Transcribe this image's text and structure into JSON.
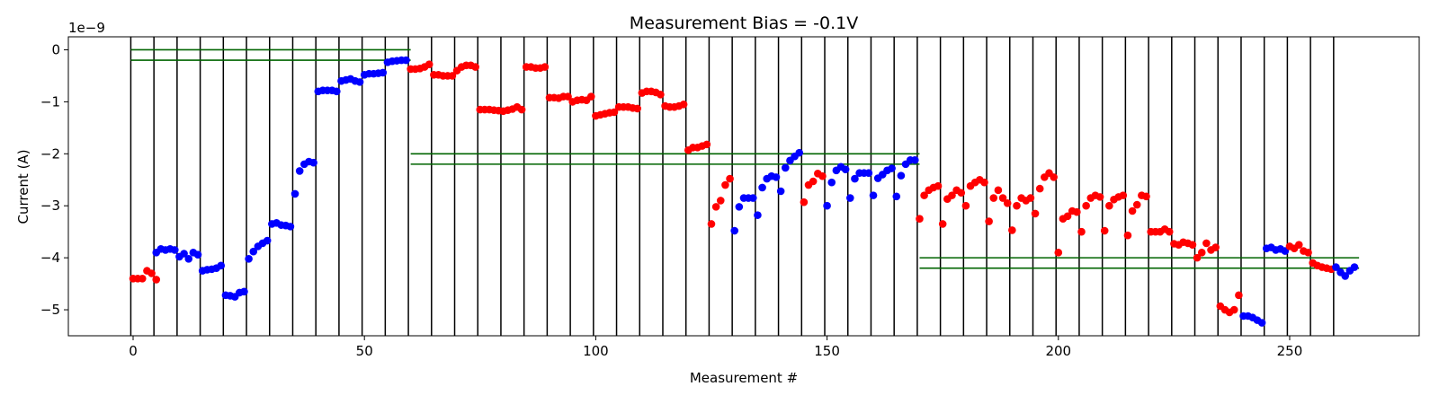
{
  "chart_data": {
    "type": "scatter",
    "title": "Measurement Bias = -0.1V",
    "xlabel": "Measurement #",
    "ylabel": "Current (A)",
    "y_scale_label": "1e−9",
    "xlim": [
      -14,
      278
    ],
    "ylim": [
      -5.5,
      0.25
    ],
    "x_ticks": [
      0,
      50,
      100,
      150,
      200,
      250
    ],
    "y_ticks": [
      0,
      -1,
      -2,
      -3,
      -4,
      -5
    ],
    "x_tick_labels": [
      "0",
      "50",
      "100",
      "150",
      "200",
      "250"
    ],
    "y_tick_labels": [
      "0",
      "−1",
      "−2",
      "−3",
      "−4",
      "−5"
    ],
    "grid": false,
    "vertical_lines": [
      -0.5,
      4.5,
      9.5,
      14.5,
      19.5,
      24.5,
      29.5,
      34.5,
      39.5,
      44.5,
      49.5,
      54.5,
      59.5,
      64.5,
      69.5,
      74.5,
      79.5,
      84.5,
      89.5,
      94.5,
      99.5,
      104.5,
      109.5,
      114.5,
      119.5,
      124.5,
      129.5,
      134.5,
      139.5,
      144.5,
      149.5,
      154.5,
      159.5,
      164.5,
      169.5,
      174.5,
      179.5,
      184.5,
      189.5,
      194.5,
      199.5,
      204.5,
      209.5,
      214.5,
      219.5,
      224.5,
      229.5,
      234.5,
      239.5,
      244.5,
      249.5,
      254.5,
      259.5
    ],
    "reference_lines": [
      {
        "x": [
          -0.5,
          60
        ],
        "y": 0.0
      },
      {
        "x": [
          -0.5,
          60
        ],
        "y": -0.2
      },
      {
        "x": [
          60,
          170
        ],
        "y": -2.0
      },
      {
        "x": [
          60,
          170
        ],
        "y": -2.2
      },
      {
        "x": [
          170,
          265
        ],
        "y": -4.0
      },
      {
        "x": [
          170,
          265
        ],
        "y": -4.2
      }
    ],
    "colors": {
      "red": "#ff0000",
      "blue": "#0000ff",
      "reference": "#006400",
      "separator": "#000000"
    },
    "series": [
      {
        "color": "red",
        "points": [
          [
            0,
            -4.4
          ],
          [
            1,
            -4.4
          ],
          [
            2,
            -4.4
          ],
          [
            3,
            -4.25
          ],
          [
            4,
            -4.3
          ],
          [
            5,
            -4.42
          ]
        ]
      },
      {
        "color": "blue",
        "points": [
          [
            5,
            -3.9
          ],
          [
            6,
            -3.83
          ],
          [
            7,
            -3.85
          ],
          [
            8,
            -3.83
          ],
          [
            9,
            -3.85
          ],
          [
            10,
            -3.98
          ],
          [
            11,
            -3.92
          ],
          [
            12,
            -4.02
          ],
          [
            13,
            -3.9
          ],
          [
            14,
            -3.94
          ],
          [
            15,
            -4.25
          ],
          [
            16,
            -4.23
          ],
          [
            17,
            -4.22
          ],
          [
            18,
            -4.2
          ],
          [
            19,
            -4.15
          ],
          [
            20,
            -4.72
          ],
          [
            21,
            -4.73
          ],
          [
            22,
            -4.75
          ],
          [
            23,
            -4.67
          ],
          [
            24,
            -4.65
          ],
          [
            25,
            -4.02
          ],
          [
            26,
            -3.88
          ],
          [
            27,
            -3.78
          ],
          [
            28,
            -3.72
          ],
          [
            29,
            -3.67
          ],
          [
            30,
            -3.35
          ],
          [
            31,
            -3.33
          ],
          [
            32,
            -3.37
          ],
          [
            33,
            -3.38
          ],
          [
            34,
            -3.4
          ],
          [
            35,
            -2.77
          ],
          [
            36,
            -2.33
          ],
          [
            37,
            -2.2
          ],
          [
            38,
            -2.15
          ],
          [
            39,
            -2.17
          ],
          [
            40,
            -0.8
          ],
          [
            41,
            -0.78
          ],
          [
            42,
            -0.78
          ],
          [
            43,
            -0.78
          ],
          [
            44,
            -0.8
          ],
          [
            45,
            -0.6
          ],
          [
            46,
            -0.58
          ],
          [
            47,
            -0.56
          ],
          [
            48,
            -0.6
          ],
          [
            49,
            -0.62
          ],
          [
            50,
            -0.48
          ],
          [
            51,
            -0.46
          ],
          [
            52,
            -0.46
          ],
          [
            53,
            -0.45
          ],
          [
            54,
            -0.44
          ],
          [
            55,
            -0.24
          ],
          [
            56,
            -0.22
          ],
          [
            57,
            -0.21
          ],
          [
            58,
            -0.2
          ],
          [
            59,
            -0.2
          ]
        ]
      },
      {
        "color": "red",
        "points": [
          [
            60,
            -0.37
          ],
          [
            61,
            -0.37
          ],
          [
            62,
            -0.36
          ],
          [
            63,
            -0.33
          ],
          [
            64,
            -0.28
          ],
          [
            65,
            -0.48
          ],
          [
            66,
            -0.48
          ],
          [
            67,
            -0.5
          ],
          [
            68,
            -0.5
          ],
          [
            69,
            -0.5
          ],
          [
            70,
            -0.4
          ],
          [
            71,
            -0.33
          ],
          [
            72,
            -0.3
          ],
          [
            73,
            -0.3
          ],
          [
            74,
            -0.33
          ],
          [
            75,
            -1.15
          ],
          [
            76,
            -1.15
          ],
          [
            77,
            -1.15
          ],
          [
            78,
            -1.16
          ],
          [
            79,
            -1.17
          ],
          [
            80,
            -1.18
          ],
          [
            81,
            -1.16
          ],
          [
            82,
            -1.14
          ],
          [
            83,
            -1.1
          ],
          [
            84,
            -1.15
          ],
          [
            85,
            -0.33
          ],
          [
            86,
            -0.33
          ],
          [
            87,
            -0.35
          ],
          [
            88,
            -0.35
          ],
          [
            89,
            -0.33
          ],
          [
            90,
            -0.92
          ],
          [
            91,
            -0.92
          ],
          [
            92,
            -0.93
          ],
          [
            93,
            -0.9
          ],
          [
            94,
            -0.9
          ],
          [
            95,
            -1.0
          ],
          [
            96,
            -0.97
          ],
          [
            97,
            -0.96
          ],
          [
            98,
            -0.97
          ],
          [
            99,
            -0.9
          ],
          [
            100,
            -1.27
          ],
          [
            101,
            -1.25
          ],
          [
            102,
            -1.23
          ],
          [
            103,
            -1.21
          ],
          [
            104,
            -1.2
          ],
          [
            105,
            -1.1
          ],
          [
            106,
            -1.1
          ],
          [
            107,
            -1.1
          ],
          [
            108,
            -1.12
          ],
          [
            109,
            -1.13
          ],
          [
            110,
            -0.83
          ],
          [
            111,
            -0.8
          ],
          [
            112,
            -0.8
          ],
          [
            113,
            -0.82
          ],
          [
            114,
            -0.86
          ],
          [
            115,
            -1.08
          ],
          [
            116,
            -1.1
          ],
          [
            117,
            -1.1
          ],
          [
            118,
            -1.08
          ],
          [
            119,
            -1.05
          ],
          [
            120,
            -1.93
          ],
          [
            121,
            -1.88
          ],
          [
            122,
            -1.88
          ],
          [
            123,
            -1.85
          ],
          [
            124,
            -1.82
          ],
          [
            125,
            -3.35
          ],
          [
            126,
            -3.02
          ],
          [
            127,
            -2.9
          ],
          [
            128,
            -2.6
          ],
          [
            129,
            -2.48
          ]
        ]
      },
      {
        "color": "blue",
        "points": [
          [
            130,
            -3.48
          ],
          [
            131,
            -3.02
          ],
          [
            132,
            -2.85
          ],
          [
            133,
            -2.85
          ],
          [
            134,
            -2.85
          ],
          [
            135,
            -3.18
          ],
          [
            136,
            -2.65
          ],
          [
            137,
            -2.48
          ],
          [
            138,
            -2.43
          ],
          [
            139,
            -2.45
          ],
          [
            140,
            -2.72
          ],
          [
            141,
            -2.27
          ],
          [
            142,
            -2.13
          ],
          [
            143,
            -2.05
          ],
          [
            144,
            -1.98
          ]
        ]
      },
      {
        "color": "red",
        "points": [
          [
            145,
            -2.93
          ],
          [
            146,
            -2.6
          ],
          [
            147,
            -2.53
          ],
          [
            148,
            -2.38
          ],
          [
            149,
            -2.43
          ]
        ]
      },
      {
        "color": "blue",
        "points": [
          [
            150,
            -3.0
          ],
          [
            151,
            -2.55
          ],
          [
            152,
            -2.32
          ],
          [
            153,
            -2.25
          ],
          [
            154,
            -2.3
          ],
          [
            155,
            -2.85
          ],
          [
            156,
            -2.48
          ],
          [
            157,
            -2.37
          ],
          [
            158,
            -2.37
          ],
          [
            159,
            -2.37
          ],
          [
            160,
            -2.8
          ],
          [
            161,
            -2.47
          ],
          [
            162,
            -2.4
          ],
          [
            163,
            -2.32
          ],
          [
            164,
            -2.28
          ],
          [
            165,
            -2.82
          ],
          [
            166,
            -2.42
          ],
          [
            167,
            -2.2
          ],
          [
            168,
            -2.12
          ],
          [
            169,
            -2.12
          ]
        ]
      },
      {
        "color": "red",
        "points": [
          [
            170,
            -3.25
          ],
          [
            171,
            -2.8
          ],
          [
            172,
            -2.7
          ],
          [
            173,
            -2.65
          ],
          [
            174,
            -2.62
          ],
          [
            175,
            -3.35
          ],
          [
            176,
            -2.87
          ],
          [
            177,
            -2.8
          ],
          [
            178,
            -2.7
          ],
          [
            179,
            -2.75
          ],
          [
            180,
            -3.0
          ],
          [
            181,
            -2.62
          ],
          [
            182,
            -2.55
          ],
          [
            183,
            -2.5
          ],
          [
            184,
            -2.55
          ],
          [
            185,
            -3.3
          ],
          [
            186,
            -2.85
          ],
          [
            187,
            -2.7
          ],
          [
            188,
            -2.85
          ],
          [
            189,
            -2.95
          ],
          [
            190,
            -3.47
          ],
          [
            191,
            -3.0
          ],
          [
            192,
            -2.85
          ],
          [
            193,
            -2.9
          ],
          [
            194,
            -2.85
          ],
          [
            195,
            -3.15
          ],
          [
            196,
            -2.67
          ],
          [
            197,
            -2.45
          ],
          [
            198,
            -2.37
          ],
          [
            199,
            -2.45
          ],
          [
            200,
            -3.9
          ],
          [
            201,
            -3.25
          ],
          [
            202,
            -3.2
          ],
          [
            203,
            -3.1
          ],
          [
            204,
            -3.12
          ],
          [
            205,
            -3.5
          ],
          [
            206,
            -3.0
          ],
          [
            207,
            -2.85
          ],
          [
            208,
            -2.8
          ],
          [
            209,
            -2.83
          ],
          [
            210,
            -3.48
          ],
          [
            211,
            -3.0
          ],
          [
            212,
            -2.88
          ],
          [
            213,
            -2.83
          ],
          [
            214,
            -2.8
          ],
          [
            215,
            -3.57
          ],
          [
            216,
            -3.1
          ],
          [
            217,
            -2.98
          ],
          [
            218,
            -2.8
          ],
          [
            219,
            -2.82
          ],
          [
            220,
            -3.5
          ],
          [
            221,
            -3.5
          ],
          [
            222,
            -3.5
          ],
          [
            223,
            -3.45
          ],
          [
            224,
            -3.5
          ],
          [
            225,
            -3.73
          ],
          [
            226,
            -3.75
          ],
          [
            227,
            -3.7
          ],
          [
            228,
            -3.72
          ],
          [
            229,
            -3.75
          ],
          [
            230,
            -4.0
          ],
          [
            231,
            -3.9
          ],
          [
            232,
            -3.72
          ],
          [
            233,
            -3.85
          ],
          [
            234,
            -3.8
          ],
          [
            235,
            -4.93
          ],
          [
            236,
            -5.0
          ],
          [
            237,
            -5.05
          ],
          [
            238,
            -5.0
          ],
          [
            239,
            -4.72
          ]
        ]
      },
      {
        "color": "blue",
        "points": [
          [
            240,
            -5.12
          ],
          [
            241,
            -5.12
          ],
          [
            242,
            -5.15
          ],
          [
            243,
            -5.2
          ],
          [
            244,
            -5.25
          ],
          [
            245,
            -3.82
          ],
          [
            246,
            -3.8
          ],
          [
            247,
            -3.85
          ],
          [
            248,
            -3.83
          ],
          [
            249,
            -3.87
          ]
        ]
      },
      {
        "color": "red",
        "points": [
          [
            250,
            -3.78
          ],
          [
            251,
            -3.82
          ],
          [
            252,
            -3.75
          ],
          [
            253,
            -3.87
          ],
          [
            254,
            -3.9
          ],
          [
            255,
            -4.1
          ],
          [
            256,
            -4.15
          ],
          [
            257,
            -4.18
          ],
          [
            258,
            -4.2
          ],
          [
            259,
            -4.22
          ]
        ]
      },
      {
        "color": "blue",
        "points": [
          [
            260,
            -4.18
          ],
          [
            261,
            -4.28
          ],
          [
            262,
            -4.35
          ],
          [
            263,
            -4.25
          ],
          [
            264,
            -4.18
          ]
        ]
      }
    ]
  }
}
